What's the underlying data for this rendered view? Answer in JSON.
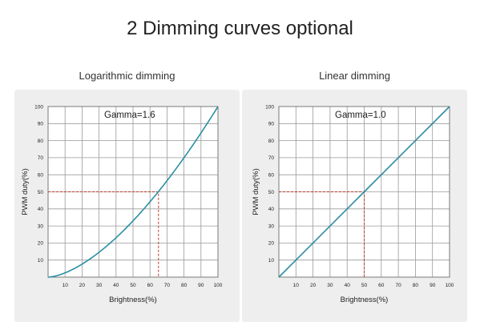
{
  "header": {
    "title": "2 Dimming curves optional"
  },
  "style": {
    "curve_color": "#2a8fa3",
    "guide_color": "#c0392b",
    "grid_color": "#9a9a9a",
    "panel_background": "#eeeeee"
  },
  "chart_data": [
    {
      "type": "line",
      "title": "Logarithmic dimming",
      "annotation": "Gamma=1.6",
      "xlabel": "Brightness(%)",
      "ylabel": "PWM duty(%)",
      "xlim": [
        0,
        100
      ],
      "ylim": [
        0,
        100
      ],
      "x_ticks": [
        "10",
        "20",
        "30",
        "40",
        "50",
        "60",
        "70",
        "80",
        "90",
        "100"
      ],
      "y_ticks": [
        "10",
        "20",
        "30",
        "40",
        "50",
        "60",
        "70",
        "80",
        "90",
        "100"
      ],
      "grid": true,
      "gamma": 1.6,
      "series": [
        {
          "x": [
            0,
            5,
            10,
            20,
            30,
            40,
            50,
            60,
            65,
            70,
            80,
            90,
            100
          ],
          "y": [
            0,
            1,
            3,
            8,
            15,
            23,
            33,
            44,
            50,
            56,
            70,
            84,
            100
          ]
        }
      ],
      "guide": {
        "x": 65,
        "y": 50
      }
    },
    {
      "type": "line",
      "title": "Linear dimming",
      "annotation": "Gamma=1.0",
      "xlabel": "Brightness(%)",
      "ylabel": "PWM duty(%)",
      "xlim": [
        0,
        100
      ],
      "ylim": [
        0,
        100
      ],
      "x_ticks": [
        "10",
        "20",
        "30",
        "40",
        "50",
        "60",
        "70",
        "80",
        "90",
        "100"
      ],
      "y_ticks": [
        "10",
        "20",
        "30",
        "40",
        "50",
        "60",
        "70",
        "80",
        "90",
        "100"
      ],
      "grid": true,
      "gamma": 1.0,
      "series": [
        {
          "x": [
            0,
            50,
            100
          ],
          "y": [
            0,
            50,
            100
          ]
        }
      ],
      "guide": {
        "x": 50,
        "y": 50
      }
    }
  ]
}
